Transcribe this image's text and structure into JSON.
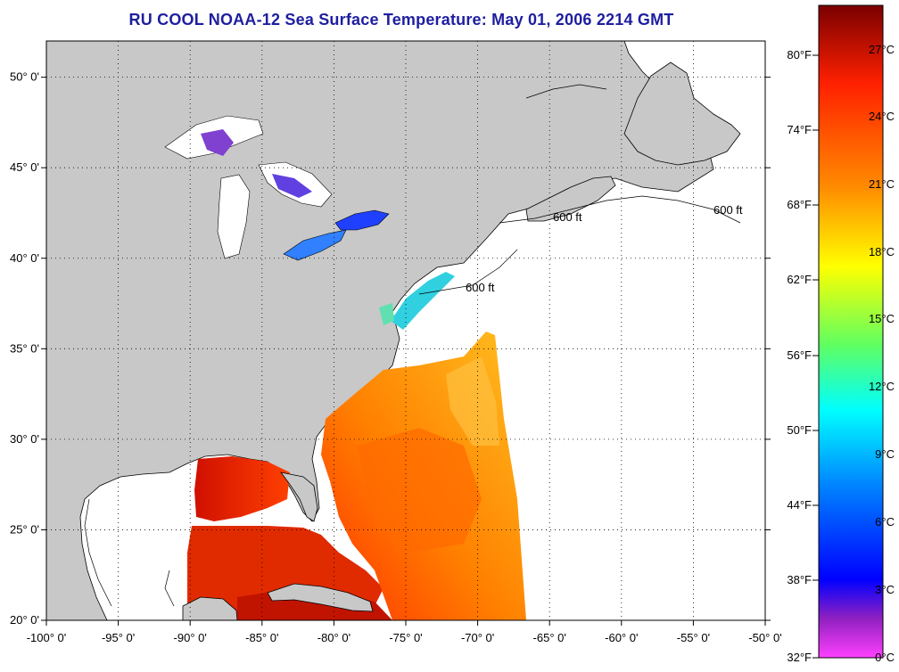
{
  "title": "RU COOL  NOAA-12  Sea Surface Temperature:  May 01, 2006 2214 GMT",
  "map": {
    "lon_range": [
      -100,
      -50
    ],
    "lat_range": [
      20,
      52
    ],
    "lon_tick_labels": [
      "-100° 0'",
      "-95° 0'",
      "-90° 0'",
      "-85° 0'",
      "-80° 0'",
      "-75° 0'",
      "-70° 0'",
      "-65° 0'",
      "-60° 0'",
      "-55° 0'",
      "-50° 0'"
    ],
    "lat_tick_labels": [
      "20° 0'",
      "25° 0'",
      "30° 0'",
      "35° 0'",
      "40° 0'",
      "45° 0'",
      "50° 0'"
    ],
    "gridlines": "dotted",
    "land_color": "#c8c8c8",
    "no_data_color": "#ffffff",
    "contour_label": "600 ft"
  },
  "colorbar": {
    "fahrenheit_labels": [
      "80°F",
      "74°F",
      "68°F",
      "62°F",
      "56°F",
      "50°F",
      "44°F",
      "38°F",
      "32°F"
    ],
    "celsius_labels": [
      "27°C",
      "24°C",
      "21°C",
      "18°C",
      "15°C",
      "12°C",
      "9°C",
      "6°C",
      "3°C",
      "0°C"
    ],
    "colors": [
      "#8b0000",
      "#ff2000",
      "#ff8000",
      "#ffd000",
      "#ffff00",
      "#80ff40",
      "#00ffff",
      "#0080ff",
      "#0000ff",
      "#8020c0",
      "#ff40ff"
    ]
  }
}
